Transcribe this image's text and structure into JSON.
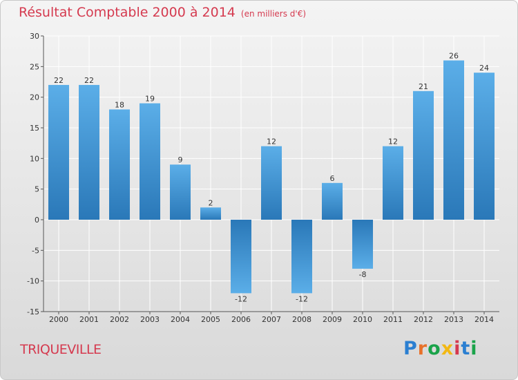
{
  "header": {
    "title": "Résultat Comptable 2000 à 2014",
    "subtitle": "(en milliers d'€)"
  },
  "footer": {
    "commune": "TRIQUEVILLE",
    "logo_text": "Proxiti",
    "logo_colors": [
      "#2b7fd1",
      "#e8712a",
      "#1aa34a",
      "#f2b814",
      "#d53a4f",
      "#2b7fd1",
      "#1aa34a"
    ]
  },
  "colors": {
    "bar_light": "#5baee8",
    "bar_dark": "#2a78b8",
    "grid": "#ffffff",
    "axis": "#555555"
  },
  "chart_data": {
    "type": "bar",
    "title": "Résultat Comptable 2000 à 2014",
    "xlabel": "",
    "ylabel": "",
    "ylim": [
      -15,
      30
    ],
    "yticks": [
      -15,
      -10,
      -5,
      0,
      5,
      10,
      15,
      20,
      25,
      30
    ],
    "grid": true,
    "categories": [
      "2000",
      "2001",
      "2002",
      "2003",
      "2004",
      "2005",
      "2006",
      "2007",
      "2008",
      "2009",
      "2010",
      "2011",
      "2012",
      "2013",
      "2014"
    ],
    "values": [
      22,
      22,
      18,
      19,
      9,
      2,
      -12,
      12,
      -12,
      6,
      -8,
      12,
      21,
      26,
      24
    ]
  }
}
